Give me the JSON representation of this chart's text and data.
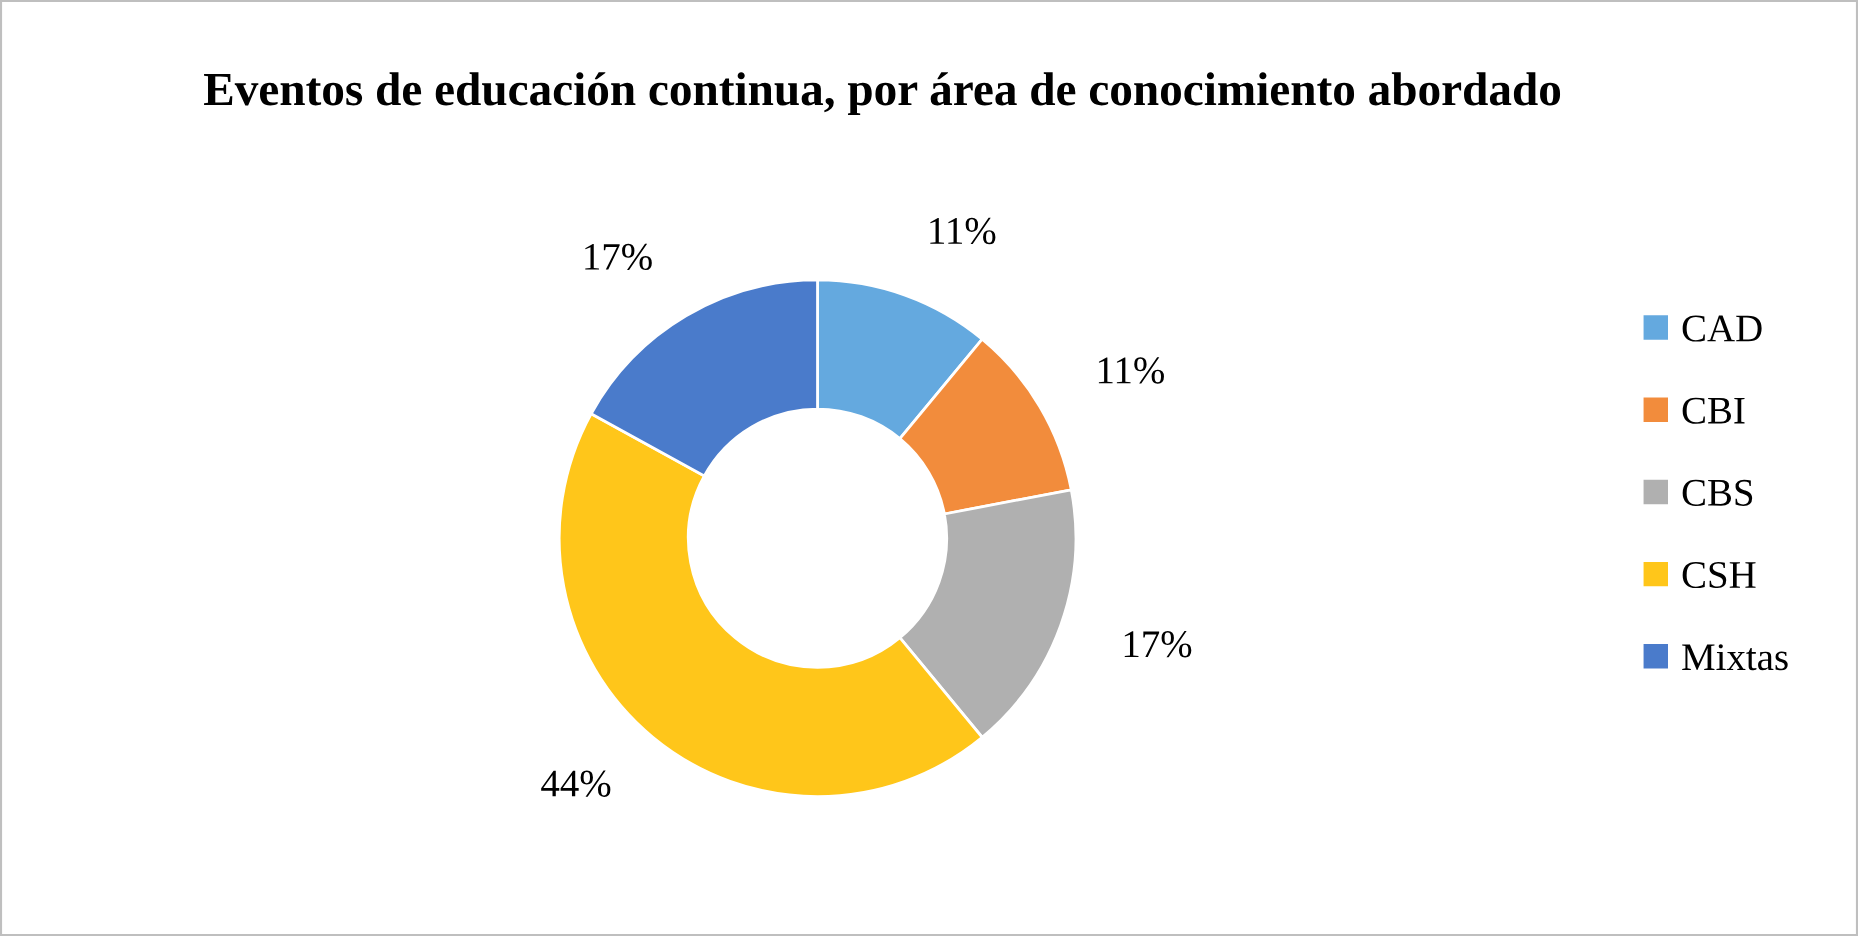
{
  "chart_data": {
    "type": "donut",
    "title": "Eventos de educación continua, por área de conocimiento abordado",
    "categories": [
      "CAD",
      "CBI",
      "CBS",
      "CSH",
      "Mixtas"
    ],
    "values": [
      11,
      11,
      17,
      44,
      17
    ],
    "colors": [
      "#64a9df",
      "#f28c3c",
      "#b0b0b0",
      "#ffc61a",
      "#4a7bcb"
    ],
    "value_labels": [
      "11%",
      "11%",
      "17%",
      "44%",
      "17%"
    ],
    "legend": "right"
  }
}
